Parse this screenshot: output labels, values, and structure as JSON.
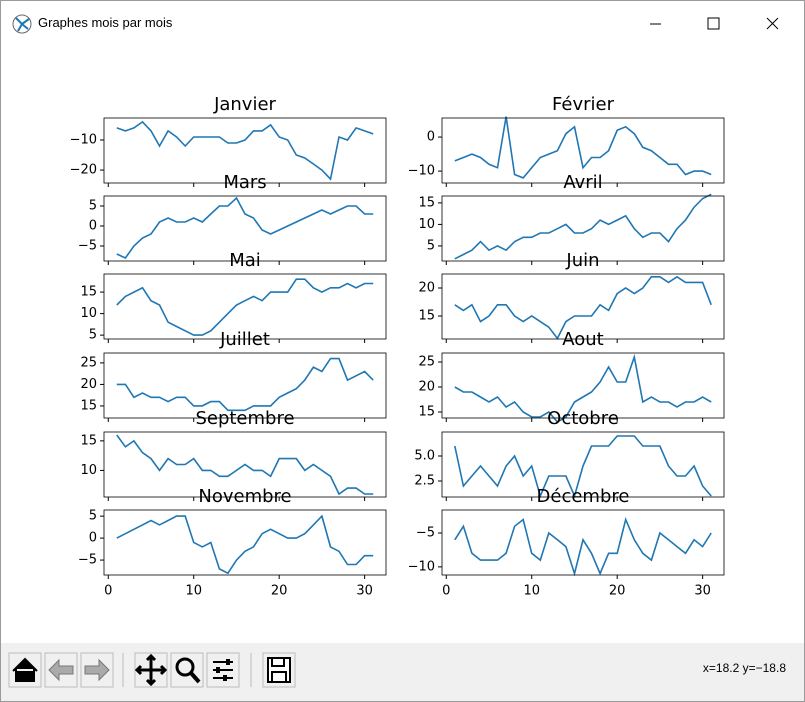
{
  "window": {
    "title": "Graphes mois par mois",
    "status": "x=18.2 y=−18.8"
  },
  "chart_data": [
    {
      "type": "line",
      "title": "Janvier",
      "x": [
        1,
        2,
        3,
        4,
        5,
        6,
        7,
        8,
        9,
        10,
        11,
        12,
        13,
        14,
        15,
        16,
        17,
        18,
        19,
        20,
        21,
        22,
        23,
        24,
        25,
        26,
        27,
        28,
        29,
        30,
        31
      ],
      "series": [
        {
          "color": "#1f77b4",
          "values": [
            -6,
            -7,
            -6,
            -4,
            -7,
            -12,
            -7,
            -9,
            -12,
            -9,
            -9,
            -9,
            -9,
            -11,
            -11,
            -10,
            -7,
            -7,
            -5,
            -9,
            -10,
            -15,
            -16,
            -18,
            -20,
            -23,
            -9,
            -10,
            -6,
            -7,
            -8
          ]
        }
      ],
      "xlim": [
        -0.5,
        32.5
      ],
      "xticks": [
        0,
        10,
        20,
        30
      ],
      "ylim": [
        -24.3,
        -2.7
      ],
      "yticks": [
        {
          "value": -20,
          "label": "−20"
        },
        {
          "value": -10,
          "label": "−10"
        }
      ]
    },
    {
      "type": "line",
      "title": "Février",
      "x": [
        1,
        2,
        3,
        4,
        5,
        6,
        7,
        8,
        9,
        10,
        11,
        12,
        13,
        14,
        15,
        16,
        17,
        18,
        19,
        20,
        21,
        22,
        23,
        24,
        25,
        26,
        27,
        28,
        29,
        30,
        31
      ],
      "series": [
        {
          "color": "#1f77b4",
          "values": [
            -7,
            -6,
            -5,
            -6,
            -8,
            -9,
            6,
            -11,
            -12,
            -9,
            -6,
            -5,
            -4,
            1,
            3,
            -9,
            -6,
            -6,
            -4,
            2,
            3,
            1,
            -3,
            -4,
            -6,
            -8,
            -8,
            -11,
            -10,
            -10,
            -11
          ]
        }
      ],
      "xlim": [
        -0.5,
        32.5
      ],
      "xticks": [
        0,
        10,
        20,
        30
      ],
      "ylim": [
        -13.5,
        5.6
      ],
      "yticks": [
        {
          "value": -10,
          "label": "−10"
        },
        0
      ]
    },
    {
      "type": "line",
      "title": "Mars",
      "x": [
        1,
        2,
        3,
        4,
        5,
        6,
        7,
        8,
        9,
        10,
        11,
        12,
        13,
        14,
        15,
        16,
        17,
        18,
        19,
        20,
        21,
        22,
        23,
        24,
        25,
        26,
        27,
        28,
        29,
        30,
        31
      ],
      "series": [
        {
          "color": "#1f77b4",
          "values": [
            -7,
            -8,
            -5,
            -3,
            -2,
            1,
            2,
            1,
            1,
            2,
            1,
            3,
            5,
            5,
            7,
            3,
            2,
            -1,
            -2,
            -1,
            0,
            1,
            2,
            3,
            4,
            3,
            4,
            5,
            5,
            3,
            3
          ]
        }
      ],
      "xlim": [
        -0.5,
        32.5
      ],
      "xticks": [
        0,
        10,
        20,
        30
      ],
      "ylim": [
        -8.75,
        7.5
      ],
      "yticks": [
        {
          "value": -5,
          "label": "−5"
        },
        0,
        5
      ]
    },
    {
      "type": "line",
      "title": "Avril",
      "x": [
        1,
        2,
        3,
        4,
        5,
        6,
        7,
        8,
        9,
        10,
        11,
        12,
        13,
        14,
        15,
        16,
        17,
        18,
        19,
        20,
        21,
        22,
        23,
        24,
        25,
        26,
        27,
        28,
        29,
        30,
        31
      ],
      "series": [
        {
          "color": "#1f77b4",
          "values": [
            2,
            3,
            4,
            6,
            4,
            5,
            4,
            6,
            7,
            7,
            8,
            8,
            9,
            10,
            8,
            8,
            9,
            11,
            10,
            11,
            12,
            9,
            7,
            8,
            8,
            6,
            9,
            11,
            14,
            16,
            17
          ]
        }
      ],
      "xlim": [
        -0.5,
        32.5
      ],
      "xticks": [
        0,
        10,
        20,
        30
      ],
      "ylim": [
        1.5,
        16.6
      ],
      "yticks": [
        5,
        10,
        15
      ]
    },
    {
      "type": "line",
      "title": "Mai",
      "x": [
        1,
        2,
        3,
        4,
        5,
        6,
        7,
        8,
        9,
        10,
        11,
        12,
        13,
        14,
        15,
        16,
        17,
        18,
        19,
        20,
        21,
        22,
        23,
        24,
        25,
        26,
        27,
        28,
        29,
        30,
        31
      ],
      "series": [
        {
          "color": "#1f77b4",
          "values": [
            12,
            14,
            15,
            16,
            13,
            12,
            8,
            7,
            6,
            5,
            5,
            6,
            8,
            10,
            12,
            13,
            14,
            13,
            15,
            15,
            15,
            18,
            18,
            16,
            15,
            16,
            16,
            17,
            16,
            17,
            17
          ]
        }
      ],
      "xlim": [
        -0.5,
        32.5
      ],
      "xticks": [
        0,
        10,
        20,
        30
      ],
      "ylim": [
        4.1,
        19.2
      ],
      "yticks": [
        5,
        10,
        15
      ]
    },
    {
      "type": "line",
      "title": "Juin",
      "x": [
        1,
        2,
        3,
        4,
        5,
        6,
        7,
        8,
        9,
        10,
        11,
        12,
        13,
        14,
        15,
        16,
        17,
        18,
        19,
        20,
        21,
        22,
        23,
        24,
        25,
        26,
        27,
        28,
        29,
        30,
        31
      ],
      "series": [
        {
          "color": "#1f77b4",
          "values": [
            17,
            16,
            17,
            14,
            15,
            17,
            17,
            15,
            14,
            15,
            14,
            13,
            11,
            14,
            15,
            15,
            15,
            17,
            16,
            19,
            20,
            19,
            20,
            22,
            22,
            21,
            22,
            21,
            21,
            21,
            17
          ]
        }
      ],
      "xlim": [
        -0.5,
        32.5
      ],
      "xticks": [
        0,
        10,
        20,
        30
      ],
      "ylim": [
        10.9,
        22.5
      ],
      "yticks": [
        15,
        20
      ]
    },
    {
      "type": "line",
      "title": "Juillet",
      "x": [
        1,
        2,
        3,
        4,
        5,
        6,
        7,
        8,
        9,
        10,
        11,
        12,
        13,
        14,
        15,
        16,
        17,
        18,
        19,
        20,
        21,
        22,
        23,
        24,
        25,
        26,
        27,
        28,
        29,
        30,
        31
      ],
      "series": [
        {
          "color": "#1f77b4",
          "values": [
            20,
            20,
            17,
            18,
            17,
            17,
            16,
            17,
            17,
            15,
            15,
            16,
            16,
            14,
            14,
            14,
            15,
            15,
            15,
            17,
            18,
            19,
            21,
            24,
            23,
            26,
            26,
            21,
            22,
            23,
            21
          ]
        }
      ],
      "xlim": [
        -0.5,
        32.5
      ],
      "xticks": [
        0,
        10,
        20,
        30
      ],
      "ylim": [
        12.2,
        27.3
      ],
      "yticks": [
        15,
        20,
        25
      ]
    },
    {
      "type": "line",
      "title": "Aout",
      "x": [
        1,
        2,
        3,
        4,
        5,
        6,
        7,
        8,
        9,
        10,
        11,
        12,
        13,
        14,
        15,
        16,
        17,
        18,
        19,
        20,
        21,
        22,
        23,
        24,
        25,
        26,
        27,
        28,
        29,
        30,
        31
      ],
      "series": [
        {
          "color": "#1f77b4",
          "values": [
            20,
            19,
            19,
            18,
            17,
            18,
            16,
            17,
            15,
            14,
            14,
            15,
            13,
            14,
            17,
            18,
            19,
            21,
            24,
            21,
            21,
            26,
            17,
            18,
            17,
            17,
            16,
            17,
            17,
            18,
            17
          ]
        }
      ],
      "xlim": [
        -0.5,
        32.5
      ],
      "xticks": [
        0,
        10,
        20,
        30
      ],
      "ylim": [
        13.8,
        26.8
      ],
      "yticks": [
        15,
        20,
        25
      ]
    },
    {
      "type": "line",
      "title": "Septembre",
      "x": [
        1,
        2,
        3,
        4,
        5,
        6,
        7,
        8,
        9,
        10,
        11,
        12,
        13,
        14,
        15,
        16,
        17,
        18,
        19,
        20,
        21,
        22,
        23,
        24,
        25,
        26,
        27,
        28,
        29,
        30,
        31
      ],
      "series": [
        {
          "color": "#1f77b4",
          "values": [
            16,
            14,
            15,
            13,
            12,
            10,
            12,
            11,
            11,
            12,
            10,
            10,
            9,
            9,
            10,
            11,
            10,
            10,
            9,
            12,
            12,
            12,
            10,
            11,
            10,
            9,
            6,
            7,
            7,
            6,
            6
          ]
        }
      ],
      "xlim": [
        -0.5,
        32.5
      ],
      "xticks": [
        0,
        10,
        20,
        30
      ],
      "ylim": [
        5.5,
        16.5
      ],
      "yticks": [
        10,
        15
      ]
    },
    {
      "type": "line",
      "title": "Octobre",
      "x": [
        1,
        2,
        3,
        4,
        5,
        6,
        7,
        8,
        9,
        10,
        11,
        12,
        13,
        14,
        15,
        16,
        17,
        18,
        19,
        20,
        21,
        22,
        23,
        24,
        25,
        26,
        27,
        28,
        29,
        30,
        31
      ],
      "series": [
        {
          "color": "#1f77b4",
          "values": [
            6,
            2,
            3,
            4,
            3,
            2,
            4,
            5,
            3,
            4,
            1,
            3,
            3,
            3,
            1,
            4,
            6,
            6,
            6,
            7,
            7,
            7,
            6,
            6,
            6,
            4,
            3,
            3,
            4,
            2,
            1
          ]
        }
      ],
      "xlim": [
        -0.5,
        32.5
      ],
      "xticks": [
        0,
        10,
        20,
        30
      ],
      "ylim": [
        0.9,
        7.4
      ],
      "yticks": [
        2.5,
        {
          "value": 5,
          "label": "5.0"
        }
      ]
    },
    {
      "type": "line",
      "title": "Novembre",
      "x": [
        1,
        2,
        3,
        4,
        5,
        6,
        7,
        8,
        9,
        10,
        11,
        12,
        13,
        14,
        15,
        16,
        17,
        18,
        19,
        20,
        21,
        22,
        23,
        24,
        25,
        26,
        27,
        28,
        29,
        30,
        31
      ],
      "series": [
        {
          "color": "#1f77b4",
          "values": [
            0,
            1,
            2,
            3,
            4,
            3,
            4,
            5,
            5,
            -1,
            -2,
            -1,
            -7,
            -8,
            -5,
            -3,
            -2,
            1,
            2,
            1,
            0,
            0,
            1,
            3,
            5,
            -2,
            -3,
            -6,
            -6,
            -4,
            -4
          ]
        }
      ],
      "xlim": [
        -0.5,
        32.5
      ],
      "xticks": [
        0,
        10,
        20,
        30
      ],
      "ylim": [
        -8.4,
        6.4
      ],
      "yticks": [
        {
          "value": -5,
          "label": "−5"
        },
        0,
        5
      ]
    },
    {
      "type": "line",
      "title": "Décembre",
      "x": [
        1,
        2,
        3,
        4,
        5,
        6,
        7,
        8,
        9,
        10,
        11,
        12,
        13,
        14,
        15,
        16,
        17,
        18,
        19,
        20,
        21,
        22,
        23,
        24,
        25,
        26,
        27,
        28,
        29,
        30,
        31
      ],
      "series": [
        {
          "color": "#1f77b4",
          "values": [
            -6,
            -4,
            -8,
            -9,
            -9,
            -9,
            -8,
            -4,
            -3,
            -8,
            -9,
            -5,
            -6,
            -7,
            -11,
            -6,
            -8,
            -11,
            -8,
            -8,
            -3,
            -6,
            -8,
            -9,
            -5,
            -6,
            -7,
            -8,
            -6,
            -7,
            -5
          ]
        }
      ],
      "xlim": [
        -0.5,
        32.5
      ],
      "xticks": [
        0,
        10,
        20,
        30
      ],
      "ylim": [
        -11.2,
        -1.6
      ],
      "yticks": [
        {
          "value": -10,
          "label": "−10"
        },
        {
          "value": -5,
          "label": "−5"
        }
      ]
    }
  ]
}
